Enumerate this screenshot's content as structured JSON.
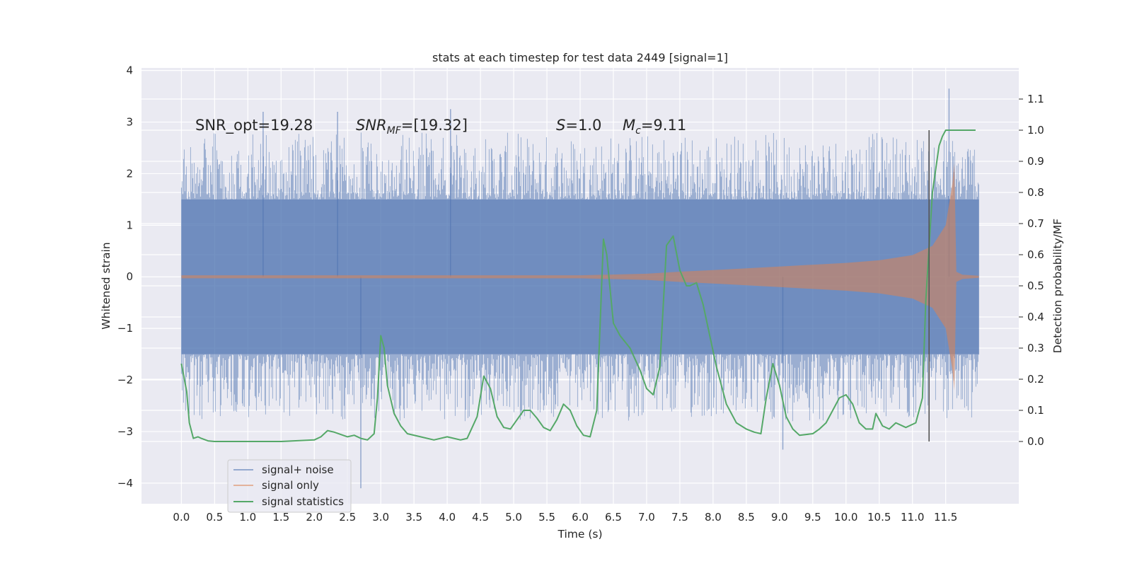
{
  "chart_data": {
    "type": "line",
    "title": "stats at each timestep for test data 2449 [signal=1]",
    "xlabel": "Time (s)",
    "ylabel": "Whitened strain",
    "y2label": "Detection probability/MF",
    "xlim": [
      -0.6,
      12.6
    ],
    "ylim": [
      -4.4,
      4.05
    ],
    "y2lim": [
      -0.2,
      1.2
    ],
    "x_ticks": [
      0.0,
      0.5,
      1.0,
      1.5,
      2.0,
      2.5,
      3.0,
      3.5,
      4.0,
      4.5,
      5.0,
      5.5,
      6.0,
      6.5,
      7.0,
      7.5,
      8.0,
      8.5,
      9.0,
      9.5,
      10.0,
      10.5,
      11.0,
      11.5
    ],
    "x_tick_labels": [
      "0.0",
      "0.5",
      "1.0",
      "1.5",
      "2.0",
      "2.5",
      "3.0",
      "3.5",
      "4.0",
      "4.5",
      "5.0",
      "5.5",
      "6.0",
      "6.5",
      "7.0",
      "7.5",
      "8.0",
      "8.5",
      "9.0",
      "9.5",
      "10.0",
      "10.5",
      "11.0",
      "11.5"
    ],
    "y_ticks": [
      4,
      3,
      2,
      1,
      0,
      -1,
      -2,
      -3,
      -4
    ],
    "y_tick_labels": [
      "4",
      "3",
      "2",
      "1",
      "0",
      "−1",
      "−2",
      "−3",
      "−4"
    ],
    "y2_ticks": [
      1.1,
      1.0,
      0.9,
      0.8,
      0.7,
      0.6,
      0.5,
      0.4,
      0.3,
      0.2,
      0.1,
      0.0
    ],
    "y2_tick_labels": [
      "1.1",
      "1.0",
      "0.9",
      "0.8",
      "0.7",
      "0.6",
      "0.5",
      "0.4",
      "0.3",
      "0.2",
      "0.1",
      "0.0"
    ],
    "annotations": [
      {
        "text": "SNR_opt=19.28",
        "x": 0.2,
        "y": 2.85
      },
      {
        "text": "SNR_MF=[19.32]",
        "x": 2.6,
        "y": 2.85
      },
      {
        "text": "S=1.0",
        "x": 5.6,
        "y": 2.85
      },
      {
        "text": "M_c=9.11",
        "x": 6.6,
        "y": 2.85
      }
    ],
    "annotation_display": {
      "snr_opt": "SNR_opt=19.28",
      "snr_mf_base": "SNR",
      "snr_mf_sub": "MF",
      "snr_mf_rest": "=[19.32]",
      "s_base": "S",
      "s_rest": "=1.0",
      "mc_base": "M",
      "mc_sub": "c",
      "mc_rest": "=9.11"
    },
    "vertical_line": {
      "x": 11.25,
      "y2_range": [
        0.0,
        1.0
      ]
    },
    "legend": {
      "placement": "lower-left",
      "entries": [
        "signal+ noise",
        "signal only",
        "signal statistics"
      ]
    },
    "series": [
      {
        "name": "signal+ noise",
        "axis": "left",
        "color": "#4c72b0",
        "kind": "noise-band",
        "x_range": [
          0.0,
          12.0
        ],
        "band_upper": 1.5,
        "band_lower": -1.5,
        "notable_peaks": [
          {
            "x": 1.23,
            "y": 3.2
          },
          {
            "x": 2.35,
            "y": 3.2
          },
          {
            "x": 4.05,
            "y": 3.25
          },
          {
            "x": 11.55,
            "y": 3.65
          },
          {
            "x": 2.7,
            "y": -4.1
          },
          {
            "x": 9.05,
            "y": -3.35
          }
        ]
      },
      {
        "name": "signal only",
        "axis": "left",
        "color": "#dd8452",
        "kind": "chirp-envelope",
        "envelope": {
          "x": [
            0.0,
            6.0,
            7.0,
            7.5,
            8.0,
            9.0,
            10.0,
            10.5,
            11.0,
            11.3,
            11.5,
            11.6,
            11.63,
            11.66,
            11.75,
            12.0
          ],
          "amp": [
            0.03,
            0.03,
            0.06,
            0.1,
            0.13,
            0.2,
            0.27,
            0.32,
            0.42,
            0.6,
            1.0,
            1.8,
            2.2,
            0.1,
            0.04,
            0.02
          ]
        }
      },
      {
        "name": "signal statistics",
        "axis": "right",
        "color": "#55a868",
        "kind": "line",
        "x": [
          0.0,
          0.08,
          0.12,
          0.18,
          0.25,
          0.3,
          0.4,
          0.5,
          0.6,
          0.8,
          1.0,
          1.5,
          2.0,
          2.1,
          2.2,
          2.3,
          2.5,
          2.6,
          2.7,
          2.8,
          2.9,
          2.95,
          3.0,
          3.05,
          3.1,
          3.2,
          3.3,
          3.4,
          3.6,
          3.8,
          4.0,
          4.2,
          4.3,
          4.45,
          4.55,
          4.65,
          4.75,
          4.85,
          4.95,
          5.05,
          5.15,
          5.25,
          5.35,
          5.45,
          5.55,
          5.65,
          5.75,
          5.85,
          5.95,
          6.05,
          6.15,
          6.25,
          6.35,
          6.4,
          6.5,
          6.6,
          6.75,
          6.9,
          7.0,
          7.1,
          7.2,
          7.3,
          7.4,
          7.5,
          7.6,
          7.65,
          7.75,
          7.85,
          7.95,
          8.05,
          8.2,
          8.35,
          8.5,
          8.62,
          8.72,
          8.8,
          8.9,
          9.0,
          9.1,
          9.2,
          9.3,
          9.5,
          9.6,
          9.7,
          9.8,
          9.9,
          10.0,
          10.1,
          10.2,
          10.3,
          10.4,
          10.45,
          10.55,
          10.65,
          10.75,
          10.9,
          11.05,
          11.15,
          11.2,
          11.3,
          11.4,
          11.45,
          11.5,
          11.6,
          11.7,
          11.8,
          11.95
        ],
        "y": [
          0.25,
          0.16,
          0.06,
          0.01,
          0.015,
          0.01,
          0.002,
          0.0,
          0.0,
          0.0,
          0.0,
          0.0,
          0.005,
          0.015,
          0.035,
          0.03,
          0.015,
          0.02,
          0.01,
          0.005,
          0.025,
          0.14,
          0.34,
          0.3,
          0.18,
          0.09,
          0.05,
          0.025,
          0.015,
          0.005,
          0.015,
          0.005,
          0.01,
          0.08,
          0.21,
          0.17,
          0.08,
          0.045,
          0.04,
          0.07,
          0.1,
          0.1,
          0.075,
          0.045,
          0.035,
          0.07,
          0.12,
          0.1,
          0.05,
          0.02,
          0.015,
          0.1,
          0.65,
          0.6,
          0.38,
          0.34,
          0.3,
          0.23,
          0.17,
          0.15,
          0.24,
          0.63,
          0.66,
          0.55,
          0.5,
          0.5,
          0.51,
          0.44,
          0.34,
          0.24,
          0.12,
          0.06,
          0.04,
          0.03,
          0.025,
          0.14,
          0.25,
          0.18,
          0.08,
          0.04,
          0.02,
          0.025,
          0.04,
          0.06,
          0.1,
          0.14,
          0.15,
          0.12,
          0.06,
          0.04,
          0.04,
          0.09,
          0.05,
          0.04,
          0.06,
          0.045,
          0.06,
          0.14,
          0.45,
          0.8,
          0.95,
          0.98,
          1.0,
          1.0,
          1.0,
          1.0,
          1.0
        ]
      }
    ],
    "grid": true
  }
}
